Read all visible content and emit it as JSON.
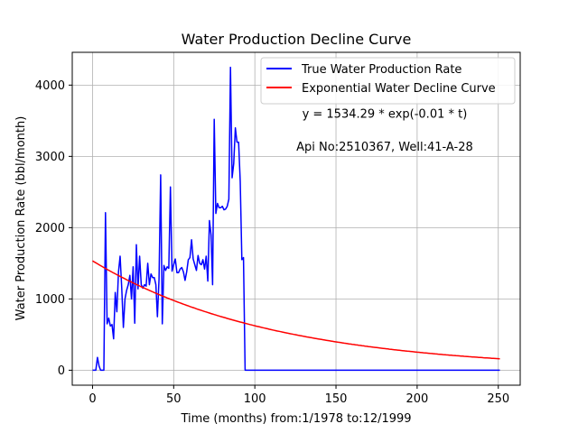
{
  "chart_data": {
    "type": "line",
    "title": "Water Production Decline Curve",
    "xlabel": "Time (months) from:1/1978 to:12/1999",
    "ylabel": "Water Production Rate (bbl/month)",
    "xlim": [
      -12.5,
      263.5
    ],
    "ylim": [
      -210,
      4460
    ],
    "xticks": [
      0,
      50,
      100,
      150,
      200,
      250
    ],
    "yticks": [
      0,
      1000,
      2000,
      3000,
      4000
    ],
    "grid": true,
    "legend_position": "top-right",
    "annotations": [
      {
        "text": "y = 1534.29 * exp(-0.01 * t)",
        "x": 180,
        "y": 3540
      },
      {
        "text": "Api No:2510367, Well:41-A-28",
        "x": 180,
        "y": 3080
      }
    ],
    "series": [
      {
        "name": "True Water Production Rate",
        "color": "#0000ff",
        "x": [
          0,
          1,
          2,
          3,
          4,
          5,
          6,
          7,
          8,
          9,
          10,
          11,
          12,
          13,
          14,
          15,
          16,
          17,
          18,
          19,
          20,
          21,
          22,
          23,
          24,
          25,
          26,
          27,
          28,
          29,
          30,
          31,
          32,
          33,
          34,
          35,
          36,
          37,
          38,
          39,
          40,
          41,
          42,
          43,
          44,
          45,
          46,
          47,
          48,
          49,
          50,
          51,
          52,
          53,
          54,
          55,
          56,
          57,
          58,
          59,
          60,
          61,
          62,
          63,
          64,
          65,
          66,
          67,
          68,
          69,
          70,
          71,
          72,
          73,
          74,
          75,
          76,
          77,
          78,
          79,
          80,
          81,
          82,
          83,
          84,
          85,
          86,
          87,
          88,
          89,
          90,
          91,
          92,
          93,
          94,
          95,
          100,
          150,
          200,
          251
        ],
        "y": [
          0,
          0,
          0,
          180,
          60,
          0,
          0,
          0,
          2210,
          650,
          730,
          620,
          640,
          440,
          1090,
          820,
          1380,
          1600,
          1150,
          600,
          1000,
          1120,
          1200,
          1330,
          1000,
          1450,
          660,
          1760,
          1140,
          1600,
          1200,
          1150,
          1200,
          1180,
          1500,
          1200,
          1350,
          1300,
          1300,
          1200,
          750,
          1280,
          2740,
          650,
          1470,
          1400,
          1450,
          1430,
          2570,
          1390,
          1480,
          1560,
          1370,
          1370,
          1420,
          1440,
          1380,
          1260,
          1380,
          1550,
          1580,
          1830,
          1560,
          1480,
          1400,
          1610,
          1500,
          1480,
          1550,
          1420,
          1600,
          1250,
          2100,
          1900,
          1200,
          3520,
          2200,
          2340,
          2280,
          2280,
          2300,
          2250,
          2260,
          2300,
          2400,
          4250,
          2700,
          2900,
          3400,
          3200,
          3200,
          2650,
          1550,
          1580,
          0,
          0,
          0,
          0,
          0,
          0
        ]
      },
      {
        "name": "Exponential Water Decline Curve",
        "color": "#ff0000",
        "a": 1534.29,
        "b": 0.009,
        "x_start": 0,
        "x_end": 251,
        "x": [
          0,
          25,
          50,
          75,
          100,
          125,
          150,
          175,
          200,
          225,
          251
        ],
        "y": [
          1534,
          1220,
          980,
          785,
          630,
          500,
          400,
          320,
          255,
          200,
          155
        ]
      }
    ]
  }
}
